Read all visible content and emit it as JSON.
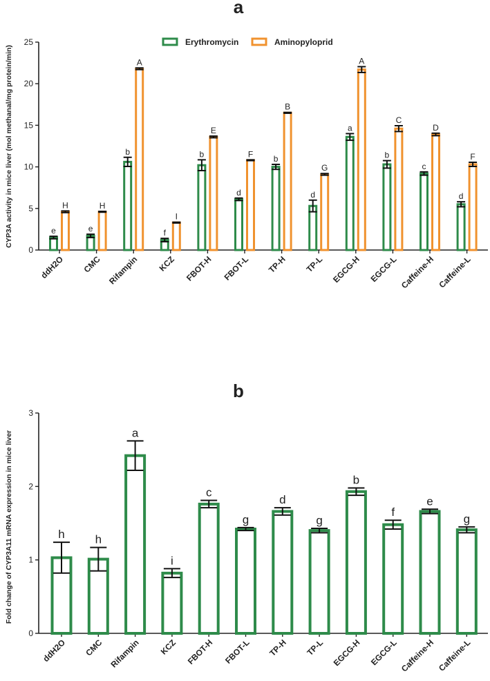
{
  "chart_data": [
    {
      "panel_label": "a",
      "type": "bar",
      "ylabel": "CYP3A activity in mice liver (mol methanal/mg protein/min)",
      "ylim": [
        0,
        25
      ],
      "yticks": [
        0,
        5,
        10,
        15,
        20,
        25
      ],
      "categories": [
        "ddH2O",
        "CMC",
        "Rifampin",
        "KCZ",
        "FBOT-H",
        "FBOT-L",
        "TP-H",
        "TP-L",
        "EGCG-H",
        "EGCG-L",
        "Caffeine-H",
        "Caffeine-L"
      ],
      "legend_position": "top-center",
      "series": [
        {
          "name": "Erythromycin",
          "color": "#2e8b4a",
          "values": [
            1.5,
            1.7,
            10.6,
            1.2,
            10.2,
            6.1,
            10.0,
            5.3,
            13.6,
            10.3,
            9.2,
            5.5
          ],
          "errors": [
            0.15,
            0.2,
            0.55,
            0.2,
            0.65,
            0.15,
            0.3,
            0.7,
            0.4,
            0.45,
            0.2,
            0.3
          ],
          "letters": [
            "e",
            "e",
            "b",
            "f",
            "b",
            "d",
            "b",
            "d",
            "a",
            "b",
            "c",
            "d"
          ]
        },
        {
          "name": "Aminopyloprid",
          "color": "#f0922e",
          "values": [
            4.6,
            4.6,
            21.8,
            3.3,
            13.6,
            10.8,
            16.5,
            9.1,
            21.7,
            14.6,
            13.9,
            10.3
          ],
          "errors": [
            0.1,
            0.05,
            0.1,
            0.05,
            0.1,
            0.05,
            0.05,
            0.1,
            0.35,
            0.35,
            0.15,
            0.25
          ],
          "letters": [
            "H",
            "H",
            "A",
            "I",
            "E",
            "F",
            "B",
            "G",
            "A",
            "C",
            "D",
            "F"
          ]
        }
      ]
    },
    {
      "panel_label": "b",
      "type": "bar",
      "ylabel": "Fold change of CYP3A11 mRNA expression in mice liver",
      "ylim": [
        0,
        3
      ],
      "yticks": [
        0,
        1,
        2,
        3
      ],
      "categories": [
        "ddH2O",
        "CMC",
        "Rifampin",
        "KCZ",
        "FBOT-H",
        "FBOT-L",
        "TP-H",
        "TP-L",
        "EGCG-H",
        "EGCG-L",
        "Caffeine-H",
        "Caffeine-L"
      ],
      "series": [
        {
          "name": "CYP3A11",
          "color": "#2e8b4a",
          "values": [
            1.03,
            1.01,
            2.42,
            0.82,
            1.76,
            1.42,
            1.66,
            1.4,
            1.93,
            1.48,
            1.66,
            1.41
          ],
          "errors": [
            0.21,
            0.16,
            0.2,
            0.06,
            0.05,
            0.02,
            0.05,
            0.03,
            0.05,
            0.06,
            0.03,
            0.04
          ],
          "letters": [
            "h",
            "h",
            "a",
            "i",
            "c",
            "g",
            "d",
            "g",
            "b",
            "f",
            "e",
            "g"
          ]
        }
      ]
    }
  ]
}
